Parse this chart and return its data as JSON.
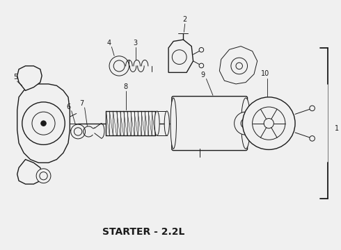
{
  "title": "STARTER - 2.2L",
  "title_fontsize": 10,
  "title_fontweight": "bold",
  "background_color": "#f0f0f0",
  "line_color": "#1a1a1a",
  "figsize": [
    4.9,
    3.6
  ],
  "dpi": 100
}
